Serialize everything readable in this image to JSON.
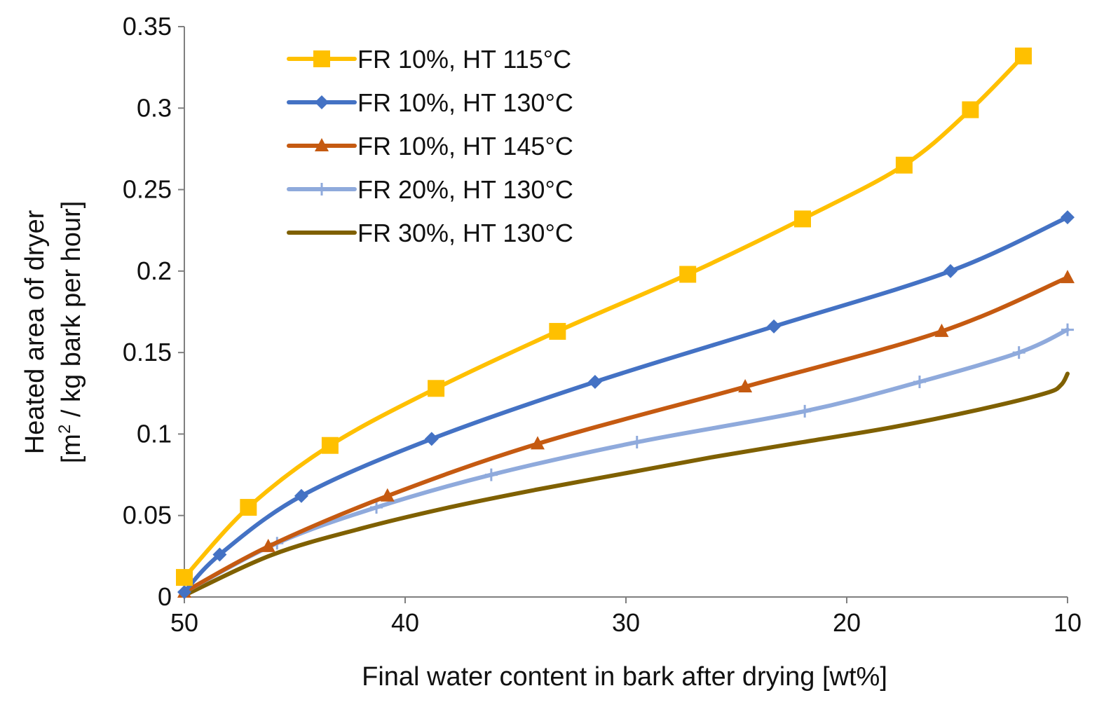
{
  "chart_data": {
    "type": "line",
    "title": "",
    "xlabel": "Final water content in bark after drying [wt%]",
    "ylabel_line1": "Heated area of dryer",
    "ylabel_line2_prefix": "[m",
    "ylabel_line2_sup": "2",
    "ylabel_line2_suffix": "  / kg bark per hour]",
    "xlim": [
      50,
      10
    ],
    "ylim": [
      0,
      0.35
    ],
    "x_ticks": [
      50,
      40,
      30,
      20,
      10
    ],
    "x_tick_labels": [
      "50",
      "40",
      "30",
      "20",
      "10"
    ],
    "y_ticks": [
      0,
      0.05,
      0.1,
      0.15,
      0.2,
      0.25,
      0.3,
      0.35
    ],
    "y_tick_labels": [
      "0",
      "0.05",
      "0.1",
      "0.15",
      "0.2",
      "0.25",
      "0.3",
      "0.35"
    ],
    "grid": false,
    "legend_position": "top-left",
    "series": [
      {
        "name": "FR 10%, HT 115°C",
        "color": "#FFC000",
        "marker": "square",
        "x": [
          50,
          47.1,
          43.4,
          38.6,
          33.1,
          27.2,
          22.0,
          17.4,
          14.4,
          12.0
        ],
        "y": [
          0.012,
          0.055,
          0.093,
          0.128,
          0.163,
          0.198,
          0.232,
          0.265,
          0.299,
          0.332
        ]
      },
      {
        "name": "FR 10%, HT 130°C",
        "color": "#4472C4",
        "marker": "diamond",
        "x": [
          50,
          48.4,
          44.7,
          38.8,
          31.4,
          23.3,
          15.3,
          10
        ],
        "y": [
          0.003,
          0.026,
          0.062,
          0.097,
          0.132,
          0.166,
          0.2,
          0.233
        ]
      },
      {
        "name": "FR 10%, HT 145°C",
        "color": "#C55A11",
        "marker": "triangle",
        "x": [
          50,
          46.2,
          40.8,
          34.0,
          24.6,
          15.7,
          10
        ],
        "y": [
          0.003,
          0.031,
          0.062,
          0.094,
          0.129,
          0.163,
          0.196
        ]
      },
      {
        "name": "FR 20%, HT 130°C",
        "color": "#8FAADC",
        "marker": "plus",
        "x": [
          50,
          45.8,
          41.3,
          36.1,
          29.5,
          21.9,
          16.7,
          12.2,
          10
        ],
        "y": [
          0.003,
          0.033,
          0.055,
          0.075,
          0.095,
          0.114,
          0.132,
          0.15,
          0.164
        ]
      },
      {
        "name": "FR 30%, HT 130°C",
        "color": "#7F6000",
        "marker": "none",
        "x": [
          50,
          46,
          42,
          38,
          34,
          30,
          26,
          22,
          18,
          14,
          11,
          10.3,
          10
        ],
        "y": [
          0.001,
          0.026,
          0.042,
          0.055,
          0.066,
          0.076,
          0.086,
          0.095,
          0.104,
          0.115,
          0.125,
          0.13,
          0.137
        ]
      }
    ]
  }
}
